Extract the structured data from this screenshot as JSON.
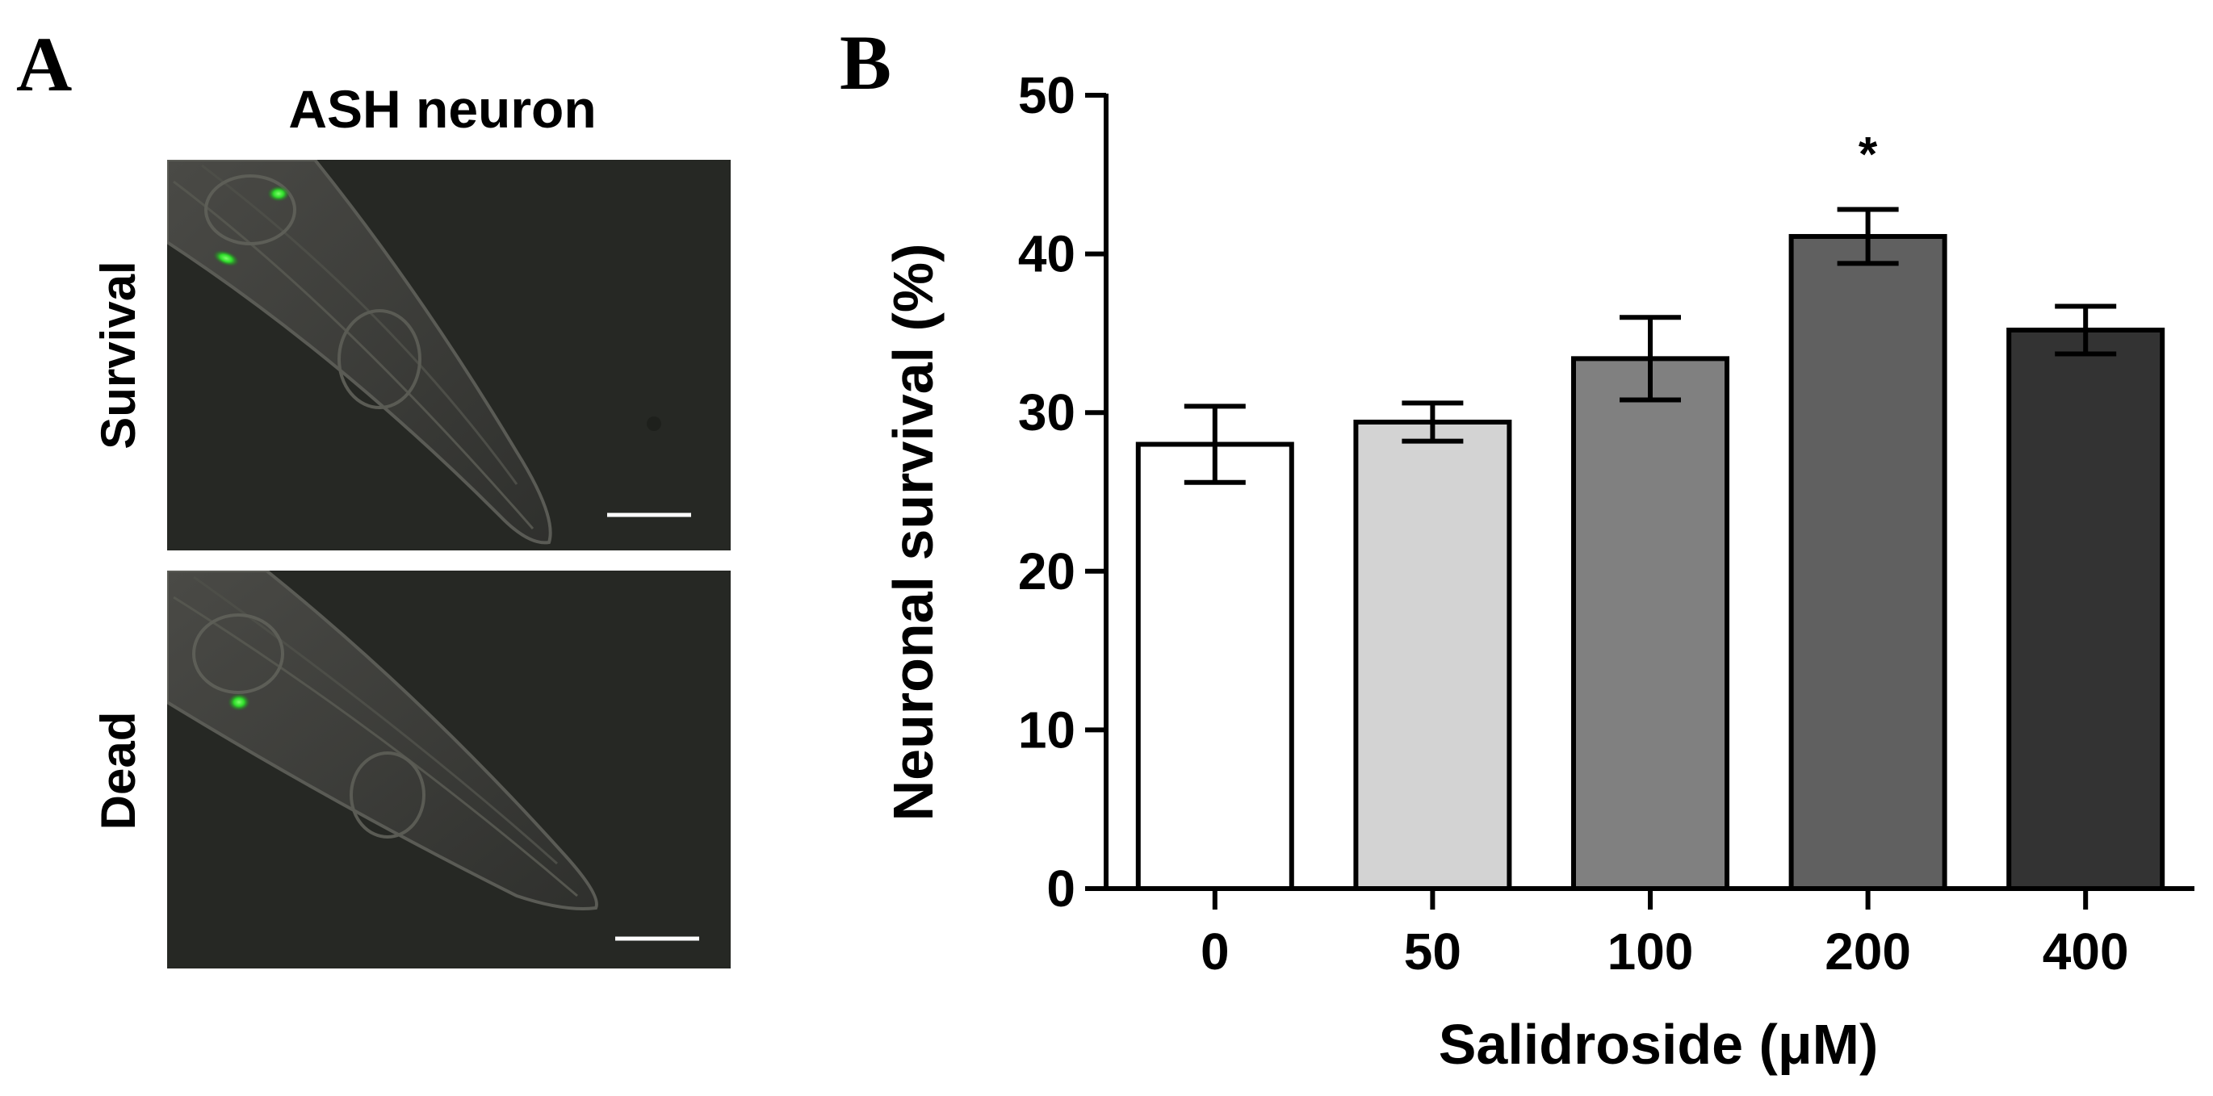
{
  "panel_a": {
    "letter": "A",
    "title": "ASH neuron",
    "rows": [
      {
        "label": "Survival"
      },
      {
        "label": "Dead"
      }
    ]
  },
  "panel_b": {
    "letter": "B"
  },
  "chart_data": {
    "type": "bar",
    "categories": [
      "0",
      "50",
      "100",
      "200",
      "400"
    ],
    "values": [
      28.0,
      29.4,
      33.4,
      41.1,
      35.2
    ],
    "errors": [
      2.4,
      1.2,
      2.6,
      1.7,
      1.5
    ],
    "bar_colors": [
      "#ffffff",
      "#d3d3d3",
      "#808080",
      "#606060",
      "#333333"
    ],
    "annotations": [
      {
        "category": "200",
        "text": "*"
      }
    ],
    "xlabel": "Salidroside (μM)",
    "ylabel": "Neuronal survival (%)",
    "ylim": [
      0,
      50
    ],
    "yticks": [
      0,
      10,
      20,
      30,
      40,
      50
    ],
    "grid": false
  }
}
